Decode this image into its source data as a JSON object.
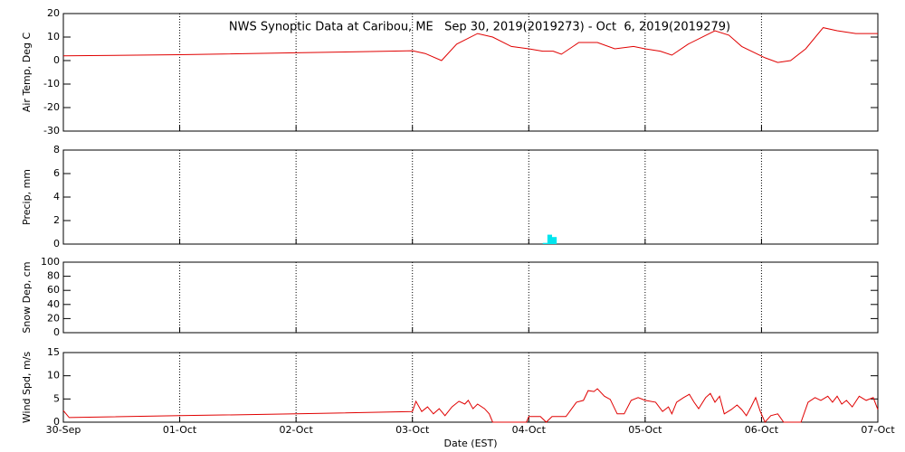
{
  "chart_data": [
    {
      "type": "line",
      "title": "NWS Synoptic Data at Caribou, ME   Sep 30, 2019(2019273) - Oct  6, 2019(2019279)",
      "ylabel": "Air Temp, Deg C",
      "xlim": [
        0,
        7
      ],
      "ylim": [
        -30,
        20
      ],
      "yticks": [
        -30,
        -20,
        -10,
        0,
        10,
        20
      ],
      "grid": "x",
      "series": [
        {
          "color": "#e00000",
          "x": [
            0,
            1,
            2,
            2.8,
            3,
            3.11,
            3.25,
            3.38,
            3.56,
            3.69,
            3.85,
            4.0,
            4.12,
            4.21,
            4.28,
            4.43,
            4.59,
            4.74,
            4.9,
            5.0,
            5.13,
            5.23,
            5.37,
            5.6,
            5.72,
            5.83,
            6.03,
            6.14,
            6.25,
            6.38,
            6.53,
            6.65,
            6.81,
            7.0
          ],
          "values": [
            2,
            2.5,
            3.3,
            4,
            4.2,
            3,
            0,
            7,
            11.5,
            10,
            6,
            5,
            4,
            4,
            2.7,
            7.7,
            7.7,
            5,
            6,
            5,
            4,
            2.3,
            7,
            12.7,
            10.8,
            6,
            1.2,
            -0.8,
            0,
            5,
            14,
            12.7,
            11.5,
            11.5
          ]
        }
      ]
    },
    {
      "type": "histogram",
      "ylabel": "Precip, mm",
      "xlim": [
        0,
        7
      ],
      "ylim": [
        0,
        8
      ],
      "yticks": [
        0,
        2,
        4,
        6,
        8
      ],
      "grid": "x",
      "color": "#00e5ee",
      "bins": [
        4.12,
        4.16,
        4.2,
        4.24
      ],
      "values": [
        0.1,
        0.8,
        0.6
      ]
    },
    {
      "type": "line",
      "ylabel": "Snow Dep, cm",
      "xlim": [
        0,
        7
      ],
      "ylim": [
        0,
        100
      ],
      "yticks": [
        0,
        20,
        40,
        60,
        80,
        100
      ],
      "grid": "x",
      "series": []
    },
    {
      "type": "line",
      "ylabel": "Wind Spd, m/s",
      "xlabel": "Date (EST)",
      "xlim": [
        0,
        7
      ],
      "ylim": [
        0,
        15
      ],
      "yticks": [
        0,
        5,
        10,
        15
      ],
      "grid": "x",
      "xticks": [
        {
          "value": 0,
          "label": "30-Sep"
        },
        {
          "value": 1,
          "label": "01-Oct"
        },
        {
          "value": 2,
          "label": "02-Oct"
        },
        {
          "value": 3,
          "label": "03-Oct"
        },
        {
          "value": 4,
          "label": "04-Oct"
        },
        {
          "value": 5,
          "label": "05-Oct"
        },
        {
          "value": 6,
          "label": "06-Oct"
        },
        {
          "value": 7,
          "label": "07-Oct"
        }
      ],
      "series": [
        {
          "color": "#e00000",
          "x": [
            0,
            0.05,
            1,
            2,
            3,
            3.03,
            3.08,
            3.13,
            3.18,
            3.23,
            3.28,
            3.34,
            3.4,
            3.45,
            3.48,
            3.52,
            3.56,
            3.62,
            3.66,
            3.69,
            3.98,
            4.0,
            4.1,
            4.15,
            4.2,
            4.32,
            4.41,
            4.47,
            4.51,
            4.56,
            4.59,
            4.65,
            4.7,
            4.76,
            4.82,
            4.88,
            4.94,
            5.0,
            5.09,
            5.15,
            5.2,
            5.23,
            5.27,
            5.33,
            5.38,
            5.42,
            5.46,
            5.52,
            5.56,
            5.6,
            5.64,
            5.68,
            5.74,
            5.79,
            5.83,
            5.87,
            5.91,
            5.95,
            5.99,
            6.03,
            6.08,
            6.14,
            6.19,
            6.34,
            6.4,
            6.46,
            6.51,
            6.57,
            6.61,
            6.65,
            6.69,
            6.73,
            6.78,
            6.84,
            6.9,
            6.96,
            7.0
          ],
          "values": [
            2.5,
            1,
            1.4,
            1.8,
            2.3,
            4.5,
            2.3,
            3.3,
            1.8,
            2.9,
            1.4,
            3.3,
            4.5,
            3.9,
            4.7,
            2.9,
            3.9,
            2.9,
            1.8,
            0,
            0,
            1.2,
            1.2,
            0,
            1.2,
            1.2,
            4.3,
            4.7,
            6.8,
            6.6,
            7.2,
            5.6,
            4.9,
            1.8,
            1.8,
            4.7,
            5.3,
            4.7,
            4.3,
            2.3,
            3.3,
            1.8,
            4.3,
            5.3,
            6.0,
            4.3,
            2.9,
            5.3,
            6.2,
            4.3,
            5.6,
            1.8,
            2.7,
            3.7,
            2.7,
            1.4,
            3.3,
            5.3,
            2.3,
            0,
            1.4,
            1.8,
            0,
            0,
            4.3,
            5.3,
            4.7,
            5.6,
            4.3,
            5.6,
            3.9,
            4.7,
            3.3,
            5.6,
            4.7,
            5.3,
            2.7
          ]
        }
      ]
    }
  ]
}
